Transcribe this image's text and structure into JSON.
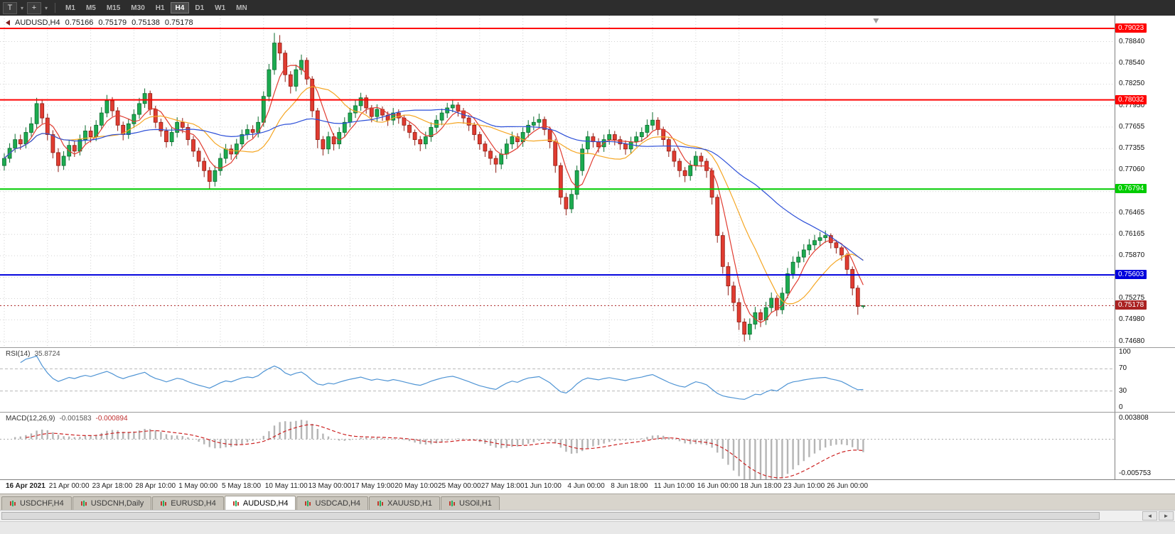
{
  "colors": {
    "bull": "#1cab50",
    "bull_stroke": "#0b6b2e",
    "bear": "#e03c31",
    "bear_stroke": "#8f1d14",
    "rsi_line": "#4f94d4",
    "macd_hist": "#b5b5b5",
    "macd_signal": "#cc2222"
  },
  "toolbar": {
    "tool_button": "T",
    "caret": "▾",
    "crosshair_icon": "+",
    "timeframes": [
      "M1",
      "M5",
      "M15",
      "M30",
      "H1",
      "H4",
      "D1",
      "W1",
      "MN"
    ],
    "active_timeframe": "H4"
  },
  "chart": {
    "symbol_title": "AUDUSD,H4",
    "open": "0.75166",
    "high": "0.75179",
    "low": "0.75138",
    "close": "0.75178",
    "price_range": [
      0.746,
      0.792
    ],
    "price_axis": [
      "0.78840",
      "0.78540",
      "0.78250",
      "0.77950",
      "0.77655",
      "0.77355",
      "0.77060",
      "0.76760",
      "0.76465",
      "0.76165",
      "0.75870",
      "0.75570",
      "0.75275",
      "0.74980",
      "0.74680"
    ],
    "time_axis": [
      "16 Apr 2021",
      "21 Apr 00:00",
      "23 Apr 18:00",
      "28 Apr 10:00",
      "1 May 00:00",
      "5 May 18:00",
      "10 May 11:00",
      "13 May 00:00",
      "17 May 19:00",
      "20 May 10:00",
      "25 May 00:00",
      "27 May 18:00",
      "1 Jun 10:00",
      "4 Jun 00:00",
      "8 Jun 18:00",
      "11 Jun 10:00",
      "16 Jun 00:00",
      "18 Jun 18:00",
      "23 Jun 10:00",
      "26 Jun 00:00"
    ],
    "hlines": [
      {
        "price": 0.79023,
        "label": "0.79023",
        "color": "#ff0000",
        "width": 2
      },
      {
        "price": 0.78032,
        "label": "0.78032",
        "color": "#ff0000",
        "width": 2
      },
      {
        "price": 0.76794,
        "label": "0.76794",
        "color": "#00cc00",
        "width": 2
      },
      {
        "price": 0.75603,
        "label": "0.75603",
        "color": "#0000dd",
        "width": 2
      }
    ],
    "current_price": {
      "value": 0.75178,
      "label": "0.75178",
      "color": "#aa2222"
    }
  },
  "rsi": {
    "name": "RSI(14)",
    "value": "35.8724",
    "levels": [
      {
        "v": 100,
        "label": "100"
      },
      {
        "v": 70,
        "label": "70"
      },
      {
        "v": 30,
        "label": "30"
      },
      {
        "v": 0,
        "label": "0"
      }
    ]
  },
  "macd": {
    "name": "MACD(12,26,9)",
    "value_main": "-0.001583",
    "value_signal": "-0.000894",
    "axis_top": "0.003808",
    "axis_bottom": "-0.005753"
  },
  "tabs": {
    "items": [
      "USDCHF,H4",
      "USDCNH,Daily",
      "EURUSD,H4",
      "AUDUSD,H4",
      "USDCAD,H4",
      "XAUUSD,H1",
      "USOil,H1"
    ],
    "active": "AUDUSD,H4"
  },
  "scrollbar": {
    "left_arrow": "◄",
    "right_arrow": "►"
  },
  "chart_data": {
    "type": "candlestick",
    "symbol": "AUDUSD",
    "timeframe": "H4",
    "current_bar": {
      "open": 0.75166,
      "high": 0.75179,
      "low": 0.75138,
      "close": 0.75178
    },
    "moving_averages": [
      {
        "period": 5,
        "color": "#e03c31"
      },
      {
        "period": 13,
        "color": "#f5a623"
      },
      {
        "period": 34,
        "color": "#2c4fd8"
      }
    ],
    "indicators": [
      {
        "name": "RSI",
        "period": 14,
        "last_value": 35.8724
      },
      {
        "name": "MACD",
        "fast": 12,
        "slow": 26,
        "signal": 9,
        "last_values": [
          -0.001583,
          -0.000894
        ]
      }
    ],
    "candles": [
      [
        0.7712,
        0.7729,
        0.7705,
        0.7722
      ],
      [
        0.7722,
        0.7743,
        0.7716,
        0.7736
      ],
      [
        0.7736,
        0.7756,
        0.773,
        0.7748
      ],
      [
        0.7748,
        0.7755,
        0.7734,
        0.7742
      ],
      [
        0.7742,
        0.7765,
        0.7736,
        0.7758
      ],
      [
        0.7758,
        0.7779,
        0.7752,
        0.777
      ],
      [
        0.777,
        0.7806,
        0.7764,
        0.7798
      ],
      [
        0.7798,
        0.7804,
        0.777,
        0.7778
      ],
      [
        0.7778,
        0.7784,
        0.7747,
        0.7755
      ],
      [
        0.7755,
        0.7761,
        0.7722,
        0.773
      ],
      [
        0.773,
        0.7736,
        0.7703,
        0.7712
      ],
      [
        0.7712,
        0.7732,
        0.7706,
        0.7725
      ],
      [
        0.7725,
        0.7748,
        0.7719,
        0.774
      ],
      [
        0.774,
        0.7746,
        0.7724,
        0.7732
      ],
      [
        0.7732,
        0.7755,
        0.7726,
        0.7748
      ],
      [
        0.7748,
        0.7768,
        0.7742,
        0.776
      ],
      [
        0.776,
        0.7766,
        0.7744,
        0.7752
      ],
      [
        0.7752,
        0.7775,
        0.7746,
        0.7768
      ],
      [
        0.7768,
        0.7793,
        0.7762,
        0.7785
      ],
      [
        0.7785,
        0.781,
        0.7779,
        0.7802
      ],
      [
        0.7802,
        0.7807,
        0.778,
        0.7788
      ],
      [
        0.7788,
        0.7793,
        0.776,
        0.7768
      ],
      [
        0.7768,
        0.7773,
        0.7747,
        0.7755
      ],
      [
        0.7755,
        0.7777,
        0.7749,
        0.777
      ],
      [
        0.777,
        0.779,
        0.7764,
        0.7783
      ],
      [
        0.7783,
        0.7806,
        0.7777,
        0.7798
      ],
      [
        0.7798,
        0.7819,
        0.7792,
        0.7812
      ],
      [
        0.7812,
        0.7816,
        0.7782,
        0.779
      ],
      [
        0.779,
        0.7795,
        0.7764,
        0.7772
      ],
      [
        0.7772,
        0.7777,
        0.7752,
        0.776
      ],
      [
        0.776,
        0.7765,
        0.7737,
        0.7745
      ],
      [
        0.7745,
        0.7766,
        0.7739,
        0.7758
      ],
      [
        0.7758,
        0.7779,
        0.7751,
        0.7772
      ],
      [
        0.7772,
        0.7778,
        0.7757,
        0.7765
      ],
      [
        0.7765,
        0.777,
        0.774,
        0.7748
      ],
      [
        0.7748,
        0.7753,
        0.7724,
        0.7732
      ],
      [
        0.7732,
        0.7737,
        0.771,
        0.7718
      ],
      [
        0.7718,
        0.7723,
        0.7696,
        0.7705
      ],
      [
        0.7705,
        0.771,
        0.768,
        0.769
      ],
      [
        0.769,
        0.7712,
        0.7683,
        0.7705
      ],
      [
        0.7705,
        0.7729,
        0.7698,
        0.7722
      ],
      [
        0.7722,
        0.7742,
        0.7715,
        0.7735
      ],
      [
        0.7735,
        0.7741,
        0.772,
        0.7728
      ],
      [
        0.7728,
        0.7749,
        0.7721,
        0.7742
      ],
      [
        0.7742,
        0.7762,
        0.7735,
        0.7755
      ],
      [
        0.7755,
        0.7769,
        0.7748,
        0.7762
      ],
      [
        0.7762,
        0.7768,
        0.775,
        0.7758
      ],
      [
        0.7758,
        0.778,
        0.7751,
        0.7772
      ],
      [
        0.7772,
        0.7815,
        0.7766,
        0.7808
      ],
      [
        0.7808,
        0.7853,
        0.7801,
        0.7845
      ],
      [
        0.7845,
        0.7896,
        0.7838,
        0.7882
      ],
      [
        0.7882,
        0.7893,
        0.7858,
        0.7868
      ],
      [
        0.7868,
        0.7872,
        0.7828,
        0.7838
      ],
      [
        0.7838,
        0.7843,
        0.7812,
        0.7822
      ],
      [
        0.7822,
        0.7852,
        0.7815,
        0.7845
      ],
      [
        0.7845,
        0.7866,
        0.7838,
        0.7858
      ],
      [
        0.7858,
        0.7862,
        0.7824,
        0.7832
      ],
      [
        0.7832,
        0.7836,
        0.7779,
        0.7788
      ],
      [
        0.7788,
        0.7792,
        0.7736,
        0.7748
      ],
      [
        0.7748,
        0.7753,
        0.7726,
        0.7735
      ],
      [
        0.7735,
        0.7759,
        0.7728,
        0.7752
      ],
      [
        0.7752,
        0.7757,
        0.7733,
        0.7742
      ],
      [
        0.7742,
        0.7765,
        0.7735,
        0.7758
      ],
      [
        0.7758,
        0.7779,
        0.7751,
        0.7772
      ],
      [
        0.7772,
        0.7792,
        0.7765,
        0.7785
      ],
      [
        0.7785,
        0.7803,
        0.7778,
        0.7795
      ],
      [
        0.7795,
        0.7813,
        0.7788,
        0.7806
      ],
      [
        0.7806,
        0.781,
        0.7784,
        0.7792
      ],
      [
        0.7792,
        0.7796,
        0.7772,
        0.778
      ],
      [
        0.778,
        0.7797,
        0.7773,
        0.779
      ],
      [
        0.779,
        0.7794,
        0.7774,
        0.7782
      ],
      [
        0.7782,
        0.7787,
        0.7767,
        0.7775
      ],
      [
        0.7775,
        0.7792,
        0.7768,
        0.7785
      ],
      [
        0.7785,
        0.779,
        0.777,
        0.7778
      ],
      [
        0.7778,
        0.7782,
        0.776,
        0.7768
      ],
      [
        0.7768,
        0.7772,
        0.775,
        0.7758
      ],
      [
        0.7758,
        0.7762,
        0.774,
        0.7748
      ],
      [
        0.7748,
        0.7753,
        0.7732,
        0.7742
      ],
      [
        0.7742,
        0.7759,
        0.7735,
        0.7752
      ],
      [
        0.7752,
        0.7772,
        0.7745,
        0.7765
      ],
      [
        0.7765,
        0.7782,
        0.7758,
        0.7775
      ],
      [
        0.7775,
        0.7791,
        0.7768,
        0.7785
      ],
      [
        0.7785,
        0.7799,
        0.7778,
        0.7792
      ],
      [
        0.7792,
        0.7804,
        0.7786,
        0.7796
      ],
      [
        0.7796,
        0.78,
        0.778,
        0.7788
      ],
      [
        0.7788,
        0.7792,
        0.777,
        0.7778
      ],
      [
        0.7778,
        0.7782,
        0.776,
        0.7768
      ],
      [
        0.7768,
        0.7772,
        0.7747,
        0.7755
      ],
      [
        0.7755,
        0.7759,
        0.7734,
        0.7742
      ],
      [
        0.7742,
        0.7746,
        0.7724,
        0.7732
      ],
      [
        0.7732,
        0.7736,
        0.7713,
        0.7722
      ],
      [
        0.7722,
        0.7726,
        0.7702,
        0.7714
      ],
      [
        0.7714,
        0.7735,
        0.7707,
        0.7728
      ],
      [
        0.7728,
        0.7749,
        0.7721,
        0.7742
      ],
      [
        0.7742,
        0.7759,
        0.7735,
        0.7752
      ],
      [
        0.7752,
        0.7757,
        0.7737,
        0.7745
      ],
      [
        0.7745,
        0.7765,
        0.7738,
        0.7758
      ],
      [
        0.7758,
        0.7775,
        0.7751,
        0.7768
      ],
      [
        0.7768,
        0.778,
        0.7761,
        0.7772
      ],
      [
        0.7772,
        0.7784,
        0.7765,
        0.7776
      ],
      [
        0.7776,
        0.778,
        0.7754,
        0.7762
      ],
      [
        0.7762,
        0.7766,
        0.7736,
        0.7745
      ],
      [
        0.7745,
        0.7749,
        0.7702,
        0.7712
      ],
      [
        0.7712,
        0.7716,
        0.7658,
        0.7668
      ],
      [
        0.7668,
        0.7674,
        0.7643,
        0.7652
      ],
      [
        0.7652,
        0.768,
        0.7646,
        0.7672
      ],
      [
        0.7672,
        0.7712,
        0.7665,
        0.7705
      ],
      [
        0.7705,
        0.7742,
        0.7698,
        0.7735
      ],
      [
        0.7735,
        0.776,
        0.7728,
        0.7752
      ],
      [
        0.7752,
        0.7757,
        0.7737,
        0.7745
      ],
      [
        0.7745,
        0.775,
        0.773,
        0.7738
      ],
      [
        0.7738,
        0.7755,
        0.7731,
        0.7748
      ],
      [
        0.7748,
        0.7762,
        0.7741,
        0.7755
      ],
      [
        0.7755,
        0.776,
        0.774,
        0.7748
      ],
      [
        0.7748,
        0.7753,
        0.7734,
        0.7742
      ],
      [
        0.7742,
        0.7747,
        0.7727,
        0.7735
      ],
      [
        0.7735,
        0.7752,
        0.7728,
        0.7745
      ],
      [
        0.7745,
        0.7759,
        0.7738,
        0.7752
      ],
      [
        0.7752,
        0.7765,
        0.7745,
        0.7758
      ],
      [
        0.7758,
        0.7776,
        0.7751,
        0.7768
      ],
      [
        0.7768,
        0.7786,
        0.7761,
        0.7775
      ],
      [
        0.7775,
        0.7779,
        0.7754,
        0.7762
      ],
      [
        0.7762,
        0.7766,
        0.774,
        0.7748
      ],
      [
        0.7748,
        0.7752,
        0.7724,
        0.7732
      ],
      [
        0.7732,
        0.7736,
        0.771,
        0.7718
      ],
      [
        0.7718,
        0.7722,
        0.7696,
        0.7705
      ],
      [
        0.7705,
        0.771,
        0.7689,
        0.7698
      ],
      [
        0.7698,
        0.7719,
        0.7691,
        0.7712
      ],
      [
        0.7712,
        0.7732,
        0.7705,
        0.7725
      ],
      [
        0.7725,
        0.773,
        0.771,
        0.7718
      ],
      [
        0.7718,
        0.7722,
        0.7695,
        0.7705
      ],
      [
        0.7705,
        0.7709,
        0.7658,
        0.7668
      ],
      [
        0.7668,
        0.7672,
        0.7605,
        0.7615
      ],
      [
        0.7615,
        0.762,
        0.7562,
        0.7572
      ],
      [
        0.7572,
        0.7578,
        0.7532,
        0.7545
      ],
      [
        0.7545,
        0.7551,
        0.751,
        0.7522
      ],
      [
        0.7522,
        0.7528,
        0.7484,
        0.7495
      ],
      [
        0.7495,
        0.75,
        0.7468,
        0.7478
      ],
      [
        0.7478,
        0.75,
        0.747,
        0.7492
      ],
      [
        0.7492,
        0.7516,
        0.7485,
        0.7508
      ],
      [
        0.7508,
        0.7513,
        0.7488,
        0.7498
      ],
      [
        0.7498,
        0.7523,
        0.7491,
        0.7515
      ],
      [
        0.7515,
        0.7536,
        0.7508,
        0.7528
      ],
      [
        0.7528,
        0.7532,
        0.7503,
        0.7512
      ],
      [
        0.7512,
        0.7543,
        0.7506,
        0.7535
      ],
      [
        0.7535,
        0.757,
        0.7528,
        0.7562
      ],
      [
        0.7562,
        0.7586,
        0.7555,
        0.7578
      ],
      [
        0.7578,
        0.7593,
        0.757,
        0.7585
      ],
      [
        0.7585,
        0.7603,
        0.7578,
        0.7595
      ],
      [
        0.7595,
        0.761,
        0.7588,
        0.7602
      ],
      [
        0.7602,
        0.7616,
        0.7595,
        0.7608
      ],
      [
        0.7608,
        0.762,
        0.7601,
        0.7612
      ],
      [
        0.7612,
        0.7622,
        0.7605,
        0.7615
      ],
      [
        0.7615,
        0.7618,
        0.7597,
        0.7605
      ],
      [
        0.7605,
        0.7609,
        0.759,
        0.7598
      ],
      [
        0.7598,
        0.7601,
        0.758,
        0.7588
      ],
      [
        0.7588,
        0.7591,
        0.756,
        0.7568
      ],
      [
        0.7568,
        0.7572,
        0.7532,
        0.7542
      ],
      [
        0.7542,
        0.7546,
        0.7505,
        0.75166
      ],
      [
        0.75166,
        0.75179,
        0.75138,
        0.75178
      ]
    ]
  }
}
